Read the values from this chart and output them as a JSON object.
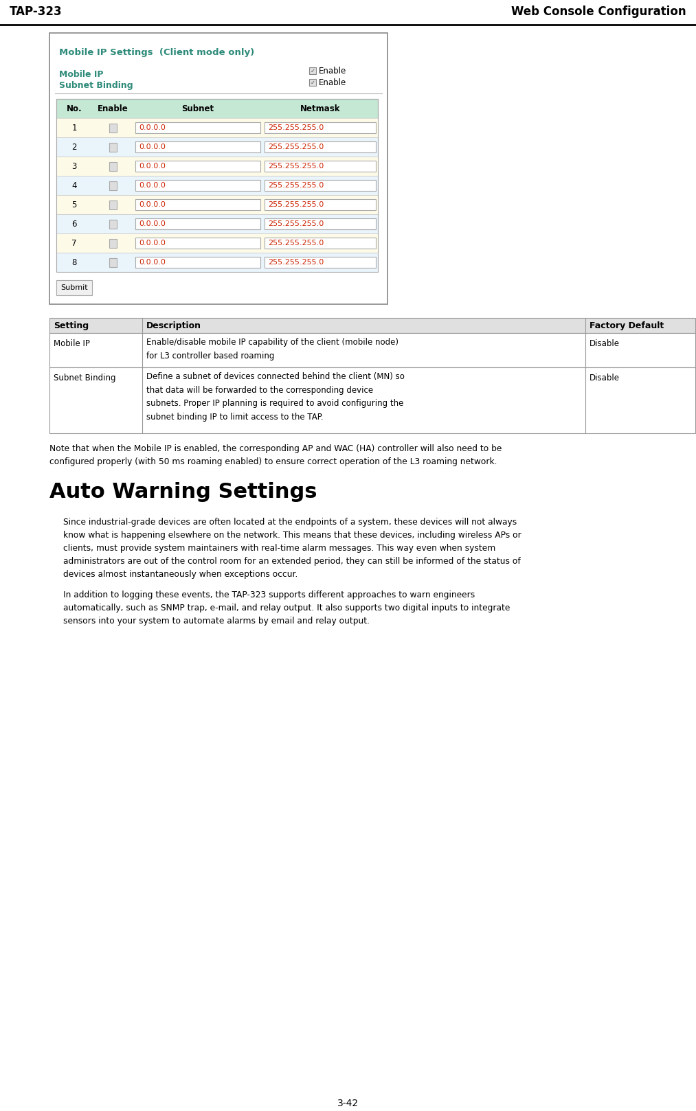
{
  "page_title_left": "TAP-323",
  "page_title_right": "Web Console Configuration",
  "page_number": "3-42",
  "web_title": "Mobile IP Settings  (Client mode only)",
  "web_title_color": "#2E8B7A",
  "mobile_ip_label": "Mobile IP",
  "subnet_binding_label": "Subnet Binding",
  "table_header": [
    "No.",
    "Enable",
    "Subnet",
    "Netmask"
  ],
  "subnet_value": "0.0.0.0",
  "netmask_value": "255.255.255.0",
  "submit_btn": "Submit",
  "settings_headers": [
    "Setting",
    "Description",
    "Factory Default"
  ],
  "settings_rows": [
    {
      "setting": "Mobile IP",
      "description": "Enable/disable mobile IP capability of the client (mobile node)\nfor L3 controller based roaming",
      "default": "Disable"
    },
    {
      "setting": "Subnet Binding",
      "description": "Define a subnet of devices connected behind the client (MN) so\nthat data will be forwarded to the corresponding device\nsubnets. Proper IP planning is required to avoid configuring the\nsubnet binding IP to limit access to the TAP.",
      "default": "Disable"
    }
  ],
  "note_text": "Note that when the Mobile IP is enabled, the corresponding AP and WAC (HA) controller will also need to be\nconfigured properly (with 50 ms roaming enabled) to ensure correct operation of the L3 roaming network.",
  "section_title": "Auto Warning Settings",
  "para1": "Since industrial-grade devices are often located at the endpoints of a system, these devices will not always\nknow what is happening elsewhere on the network. This means that these devices, including wireless APs or\nclients, must provide system maintainers with real-time alarm messages. This way even when system\nadministrators are out of the control room for an extended period, they can still be informed of the status of\ndevices almost instantaneously when exceptions occur.",
  "para2": "In addition to logging these events, the TAP-323 supports different approaches to warn engineers\nautomatically, such as SNMP trap, e-mail, and relay output. It also supports two digital inputs to integrate\nsensors into your system to automate alarms by email and relay output.",
  "bg_color": "#FFFFFF",
  "teal_color": "#2E8B7A",
  "table_header_bg": "#C5E8D5",
  "odd_row_bg": "#FDFBE8",
  "even_row_bg": "#EAF4FB",
  "settings_header_bg": "#E0E0E0",
  "input_text_color": "#CC2200",
  "netmask_text_color": "#333333"
}
